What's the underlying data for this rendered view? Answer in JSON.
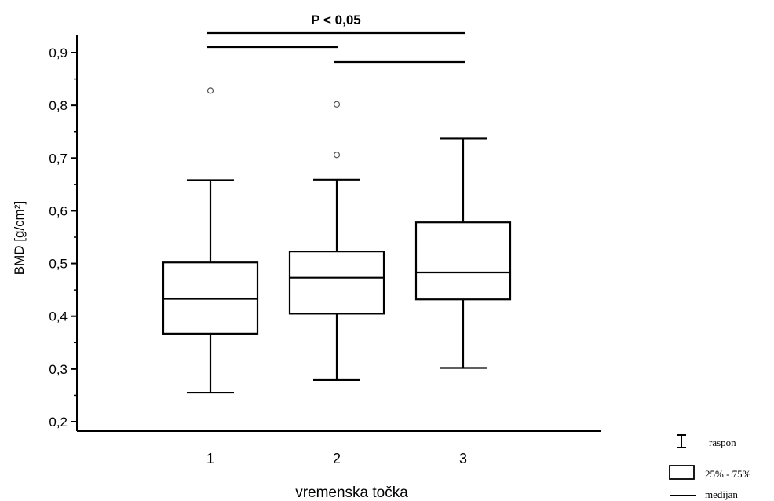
{
  "chart_data": {
    "type": "boxplot",
    "xlabel": "vremenska točka",
    "ylabel": "BMD [g/cm²]",
    "categories": [
      "1",
      "2",
      "3"
    ],
    "ylim": [
      0.2,
      0.9
    ],
    "yticks": [
      "0,2",
      "0,3",
      "0,4",
      "0,5",
      "0,6",
      "0,7",
      "0,8",
      "0,9"
    ],
    "boxes": [
      {
        "category": "1",
        "min": 0.255,
        "q1": 0.367,
        "median": 0.433,
        "q3": 0.502,
        "max": 0.658,
        "outliers": [
          0.828
        ]
      },
      {
        "category": "2",
        "min": 0.279,
        "q1": 0.405,
        "median": 0.473,
        "q3": 0.523,
        "max": 0.659,
        "outliers": [
          0.802,
          0.706
        ]
      },
      {
        "category": "3",
        "min": 0.302,
        "q1": 0.432,
        "median": 0.483,
        "q3": 0.578,
        "max": 0.737,
        "outliers": []
      }
    ],
    "significance": {
      "label": "P < 0,05",
      "bars": [
        {
          "from": "1",
          "to": "3"
        },
        {
          "from": "1",
          "to": "2"
        },
        {
          "from": "2",
          "to": "3"
        }
      ]
    },
    "legend": {
      "position": "bottom-right",
      "items": [
        {
          "symbol": "whisker",
          "label": "raspon"
        },
        {
          "symbol": "box",
          "label": "25% - 75%"
        },
        {
          "symbol": "line",
          "label": "medijan"
        }
      ]
    },
    "grid": false
  }
}
